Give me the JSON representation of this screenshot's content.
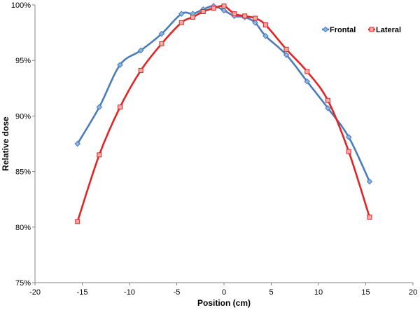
{
  "chart_data": {
    "type": "line",
    "xlabel": "Position (cm)",
    "ylabel": "Relative dose",
    "xlim": [
      -20,
      20
    ],
    "ylim": [
      75,
      100
    ],
    "xticks": [
      -20,
      -15,
      -10,
      -5,
      0,
      5,
      10,
      15,
      20
    ],
    "xtick_labels": [
      "-20",
      "-15",
      "-10",
      "-5",
      "0",
      "5",
      "10",
      "15",
      "20"
    ],
    "yticks": [
      75,
      80,
      85,
      90,
      95,
      100
    ],
    "ytick_labels": [
      "75%",
      "80%",
      "85%",
      "90%",
      "95%",
      "100%"
    ],
    "grid": false,
    "legend_position": "top-right",
    "series": [
      {
        "name": "Frontal",
        "color": "#4a7ebb",
        "marker_fill": "#8db4e2",
        "marker": "diamond",
        "x": [
          -15.5,
          -13.2,
          -11.0,
          -8.8,
          -6.6,
          -4.5,
          -3.3,
          -2.2,
          -1.1,
          0.0,
          1.1,
          2.2,
          3.3,
          4.4,
          6.6,
          8.8,
          11.0,
          13.2,
          15.4
        ],
        "y": [
          87.5,
          90.8,
          94.6,
          95.9,
          97.4,
          99.2,
          99.2,
          99.6,
          99.9,
          99.5,
          99.0,
          98.9,
          98.4,
          97.2,
          95.5,
          93.1,
          90.7,
          88.1,
          84.1
        ]
      },
      {
        "name": "Lateral",
        "color": "#e32424",
        "marker_fill": "#f7a8a8",
        "marker": "square",
        "x": [
          -15.5,
          -13.2,
          -11.0,
          -8.8,
          -6.6,
          -4.5,
          -3.3,
          -2.2,
          -1.1,
          0.0,
          1.1,
          2.2,
          3.3,
          4.4,
          6.6,
          8.8,
          11.0,
          13.2,
          15.4
        ],
        "y": [
          80.5,
          86.5,
          90.8,
          94.1,
          96.5,
          98.4,
          98.9,
          99.4,
          99.7,
          99.9,
          99.2,
          99.0,
          98.8,
          98.2,
          96.0,
          94.0,
          91.4,
          86.8,
          80.9
        ]
      }
    ]
  }
}
